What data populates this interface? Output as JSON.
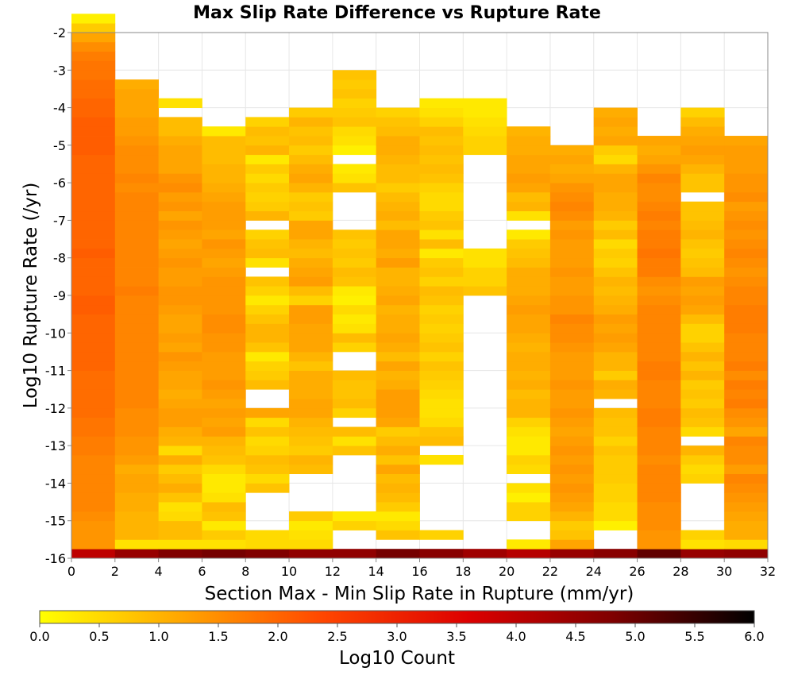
{
  "chart_data": {
    "type": "heatmap",
    "title": "Max Slip Rate Difference vs Rupture Rate",
    "xlabel": "Section Max - Min Slip Rate in Rupture (mm/yr)",
    "ylabel": "Log10 Rupture Rate (/yr)",
    "xlim": [
      0,
      32
    ],
    "ylim": [
      -16,
      -2
    ],
    "x_ticks": [
      "0",
      "2",
      "4",
      "6",
      "8",
      "10",
      "12",
      "14",
      "16",
      "18",
      "20",
      "22",
      "24",
      "26",
      "28",
      "30",
      "32"
    ],
    "y_ticks": [
      "-16",
      "-15",
      "-14",
      "-13",
      "-12",
      "-11",
      "-10",
      "-9",
      "-8",
      "-7",
      "-6",
      "-5",
      "-4",
      "-3",
      "-2"
    ],
    "x_bin_width": 2,
    "y_bin_height": 0.25,
    "y_bin_start": -16,
    "grid": true,
    "colorbar": {
      "label": "Log10 Count",
      "min": 0.0,
      "max": 6.0,
      "ticks": [
        "0.0",
        "0.5",
        "1.0",
        "1.5",
        "2.0",
        "2.5",
        "3.0",
        "3.5",
        "4.0",
        "4.5",
        "5.0",
        "5.5",
        "6.0"
      ],
      "colormap": [
        "#ffff00",
        "#ffa500",
        "#ff4500",
        "#dd0000",
        "#800000",
        "#000000"
      ]
    },
    "columns": [
      {
        "x": 0,
        "values": [
          4.0,
          1.4,
          1.4,
          1.4,
          1.5,
          1.6,
          1.6,
          1.6,
          1.6,
          1.6,
          1.6,
          1.7,
          1.7,
          1.8,
          1.8,
          1.9,
          1.9,
          1.9,
          1.9,
          1.9,
          2.0,
          2.0,
          2.0,
          2.0,
          2.0,
          2.0,
          2.1,
          2.1,
          2.0,
          2.0,
          2.0,
          2.0,
          2.1,
          2.0,
          2.0,
          2.0,
          2.0,
          2.0,
          2.0,
          2.0,
          2.0,
          2.0,
          2.0,
          2.1,
          2.1,
          2.1,
          2.1,
          2.0,
          2.0,
          1.9,
          1.9,
          1.8,
          1.8,
          1.7,
          1.5,
          1.2,
          0.7,
          0.2
        ]
      },
      {
        "x": 2,
        "values": [
          4.5,
          0.4,
          1.0,
          1.0,
          1.0,
          1.1,
          1.1,
          1.2,
          1.2,
          1.1,
          1.3,
          1.4,
          1.4,
          1.5,
          1.5,
          1.5,
          1.6,
          1.6,
          1.6,
          1.6,
          1.6,
          1.6,
          1.6,
          1.6,
          1.6,
          1.6,
          1.6,
          1.6,
          1.7,
          1.6,
          1.6,
          1.6,
          1.6,
          1.6,
          1.6,
          1.6,
          1.6,
          1.6,
          1.6,
          1.5,
          1.6,
          1.5,
          1.5,
          1.5,
          1.4,
          1.3,
          1.3,
          1.2,
          1.2,
          1.2,
          1.1
        ]
      },
      {
        "x": 4,
        "values": [
          4.8,
          0.4,
          0.9,
          0.9,
          0.5,
          0.4,
          0.8,
          1.1,
          0.9,
          0.7,
          1.1,
          0.5,
          1.0,
          1.1,
          1.3,
          1.3,
          1.2,
          1.1,
          1.2,
          1.2,
          1.3,
          1.4,
          1.2,
          1.3,
          1.2,
          1.2,
          1.3,
          1.4,
          1.4,
          1.3,
          1.3,
          1.4,
          1.3,
          1.2,
          1.3,
          1.4,
          1.2,
          1.4,
          1.3,
          1.5,
          1.4,
          1.2,
          1.2,
          1.2,
          1.1,
          0.9,
          0.9,
          null,
          0.4
        ]
      },
      {
        "x": 6,
        "values": [
          4.9,
          0.4,
          0.7,
          0.3,
          0.8,
          0.9,
          0.4,
          0.3,
          0.3,
          0.5,
          0.8,
          0.9,
          1.0,
          1.3,
          1.2,
          1.3,
          1.2,
          1.3,
          1.4,
          1.3,
          1.3,
          1.3,
          1.4,
          1.4,
          1.5,
          1.5,
          1.4,
          1.4,
          1.4,
          1.4,
          1.3,
          1.2,
          1.3,
          1.4,
          1.2,
          1.3,
          1.3,
          1.3,
          1.2,
          1.1,
          1.0,
          1.0,
          0.9,
          0.9,
          0.9,
          0.3
        ]
      },
      {
        "x": 8,
        "values": [
          4.8,
          0.5,
          0.5,
          null,
          null,
          null,
          null,
          0.8,
          0.5,
          0.8,
          0.9,
          0.6,
          0.5,
          0.8,
          0.5,
          1.2,
          null,
          null,
          0.9,
          0.7,
          0.6,
          0.3,
          0.8,
          1.0,
          1.0,
          0.8,
          0.6,
          0.3,
          0.6,
          0.8,
          null,
          0.4,
          0.9,
          0.8,
          0.6,
          null,
          1.0,
          0.7,
          0.6,
          0.7,
          0.5,
          0.7,
          0.3,
          1.0,
          0.8,
          0.9,
          0.6
        ]
      },
      {
        "x": 10,
        "values": [
          4.6,
          0.5,
          0.4,
          0.3,
          0.7,
          null,
          null,
          null,
          null,
          0.9,
          1.0,
          0.7,
          0.8,
          0.9,
          1.0,
          1.2,
          1.2,
          1.1,
          1.1,
          1.1,
          0.8,
          1.0,
          1.2,
          1.2,
          1.2,
          1.3,
          1.3,
          0.6,
          0.9,
          1.3,
          1.2,
          1.1,
          0.9,
          1.0,
          1.2,
          1.2,
          0.7,
          0.8,
          0.7,
          1.0,
          1.2,
          1.1,
          0.9,
          0.7,
          0.9,
          0.8,
          1.0,
          0.7
        ]
      },
      {
        "x": 12,
        "values": [
          4.6,
          null,
          null,
          0.6,
          0.3,
          null,
          null,
          null,
          null,
          null,
          null,
          0.8,
          0.4,
          0.9,
          null,
          0.6,
          0.9,
          0.8,
          0.8,
          0.9,
          null,
          null,
          0.6,
          0.9,
          0.4,
          0.3,
          0.5,
          0.2,
          0.3,
          0.8,
          0.9,
          0.7,
          0.8,
          0.7,
          0.8,
          null,
          null,
          null,
          null,
          0.8,
          0.4,
          0.3,
          null,
          0.2,
          0.4,
          0.5,
          0.8,
          0.7,
          0.6,
          0.8,
          0.7,
          0.8
        ]
      },
      {
        "x": 14,
        "values": [
          4.9,
          null,
          0.8,
          0.5,
          0.3,
          0.7,
          0.9,
          1.0,
          0.9,
          1.2,
          0.8,
          1.1,
          0.9,
          0.7,
          1.2,
          1.3,
          1.3,
          1.3,
          1.1,
          1.0,
          1.2,
          0.9,
          1.1,
          1.2,
          1.1,
          1.1,
          1.0,
          1.2,
          1.1,
          1.0,
          1.0,
          1.3,
          1.1,
          1.2,
          1.2,
          0.9,
          1.1,
          1.0,
          0.9,
          0.7,
          0.9,
          0.9,
          1.0,
          1.1,
          1.1,
          0.9,
          0.8,
          0.6
        ]
      },
      {
        "x": 16,
        "values": [
          4.7,
          null,
          0.6,
          null,
          null,
          null,
          null,
          null,
          null,
          null,
          0.4,
          null,
          0.9,
          0.8,
          0.5,
          0.4,
          0.4,
          0.5,
          0.6,
          0.7,
          0.8,
          0.6,
          0.8,
          0.7,
          0.6,
          0.7,
          0.6,
          0.8,
          0.9,
          0.6,
          0.8,
          0.7,
          0.3,
          0.9,
          0.4,
          0.8,
          0.7,
          0.5,
          0.5,
          0.6,
          0.8,
          0.9,
          0.8,
          0.9,
          0.8,
          0.9,
          0.6,
          0.4,
          0.3
        ]
      },
      {
        "x": 18,
        "values": [
          4.4,
          null,
          null,
          null,
          null,
          null,
          null,
          null,
          null,
          null,
          null,
          null,
          null,
          null,
          null,
          null,
          null,
          null,
          null,
          null,
          null,
          null,
          null,
          null,
          null,
          null,
          null,
          null,
          0.8,
          0.6,
          0.6,
          0.4,
          0.4,
          null,
          null,
          null,
          null,
          null,
          null,
          null,
          null,
          null,
          null,
          0.6,
          0.6,
          0.5,
          0.4,
          0.3,
          0.3
        ]
      },
      {
        "x": 20,
        "values": [
          4.1,
          0.3,
          null,
          null,
          0.6,
          0.6,
          0.2,
          0.4,
          null,
          0.5,
          0.6,
          0.3,
          0.3,
          0.4,
          0.6,
          1.0,
          1.0,
          0.9,
          1.1,
          1.0,
          1.1,
          1.1,
          1.0,
          1.1,
          1.2,
          1.2,
          1.3,
          1.2,
          1.1,
          1.1,
          1.1,
          0.9,
          0.8,
          0.7,
          0.3,
          null,
          0.4,
          1.0,
          0.9,
          1.2,
          1.3,
          1.2,
          1.2,
          1.1,
          1.1,
          1.0
        ]
      },
      {
        "x": 22,
        "values": [
          4.5,
          1.2,
          0.8,
          0.7,
          1.0,
          1.2,
          1.3,
          1.4,
          1.3,
          1.4,
          1.3,
          1.4,
          1.3,
          1.2,
          1.3,
          1.4,
          1.3,
          1.3,
          1.4,
          1.3,
          1.3,
          1.3,
          1.4,
          1.5,
          1.5,
          1.6,
          1.4,
          1.4,
          1.3,
          1.3,
          1.4,
          1.3,
          1.3,
          1.3,
          1.4,
          1.3,
          1.5,
          1.6,
          1.5,
          1.4,
          1.2,
          1.1,
          1.2,
          1.1
        ]
      },
      {
        "x": 24,
        "values": [
          4.7,
          null,
          null,
          0.2,
          0.5,
          0.5,
          0.6,
          0.6,
          0.7,
          0.7,
          0.7,
          0.8,
          0.6,
          0.8,
          0.8,
          0.9,
          null,
          1.0,
          1.1,
          0.7,
          1.0,
          1.0,
          1.2,
          1.3,
          1.2,
          1.3,
          1.1,
          1.0,
          0.9,
          1.0,
          0.8,
          0.6,
          0.7,
          0.5,
          0.9,
          0.7,
          1.0,
          1.1,
          1.1,
          1.2,
          1.2,
          1.0,
          0.5,
          0.7,
          1.2,
          1.1,
          1.2,
          1.1
        ]
      },
      {
        "x": 26,
        "values": [
          5.1,
          1.4,
          1.4,
          1.5,
          1.5,
          1.5,
          1.6,
          1.6,
          1.6,
          1.6,
          1.5,
          1.6,
          1.6,
          1.6,
          1.7,
          1.7,
          1.6,
          1.6,
          1.6,
          1.7,
          1.7,
          1.6,
          1.6,
          1.6,
          1.6,
          1.6,
          1.6,
          1.5,
          1.4,
          1.5,
          1.7,
          1.7,
          1.8,
          1.7,
          1.7,
          1.6,
          1.7,
          1.6,
          1.5,
          1.5,
          1.6,
          1.4,
          1.2,
          1.1,
          1.2
        ]
      },
      {
        "x": 28,
        "values": [
          4.5,
          0.4,
          0.6,
          null,
          null,
          null,
          null,
          null,
          0.6,
          0.5,
          0.7,
          1.0,
          null,
          0.5,
          0.8,
          0.9,
          0.7,
          0.8,
          0.7,
          1.0,
          0.8,
          1.0,
          0.8,
          0.6,
          0.6,
          0.9,
          1.2,
          1.3,
          1.2,
          1.3,
          0.9,
          0.8,
          0.7,
          0.8,
          1.0,
          0.9,
          0.8,
          0.8,
          null,
          0.8,
          0.8,
          1.0,
          1.2,
          1.3,
          1.2,
          1.1,
          0.9,
          0.6
        ]
      },
      {
        "x": 30,
        "values": [
          4.6,
          0.5,
          1.1,
          1.1,
          1.2,
          1.3,
          1.4,
          1.5,
          1.6,
          1.3,
          1.5,
          1.5,
          1.6,
          1.2,
          1.4,
          1.5,
          1.7,
          1.6,
          1.7,
          1.5,
          1.7,
          1.6,
          1.6,
          1.6,
          1.7,
          1.7,
          1.7,
          1.6,
          1.6,
          1.5,
          1.4,
          1.5,
          1.6,
          1.5,
          1.4,
          1.5,
          1.4,
          1.3,
          1.5,
          1.4,
          1.4,
          1.3,
          1.3,
          1.3,
          1.2
        ]
      }
    ]
  }
}
